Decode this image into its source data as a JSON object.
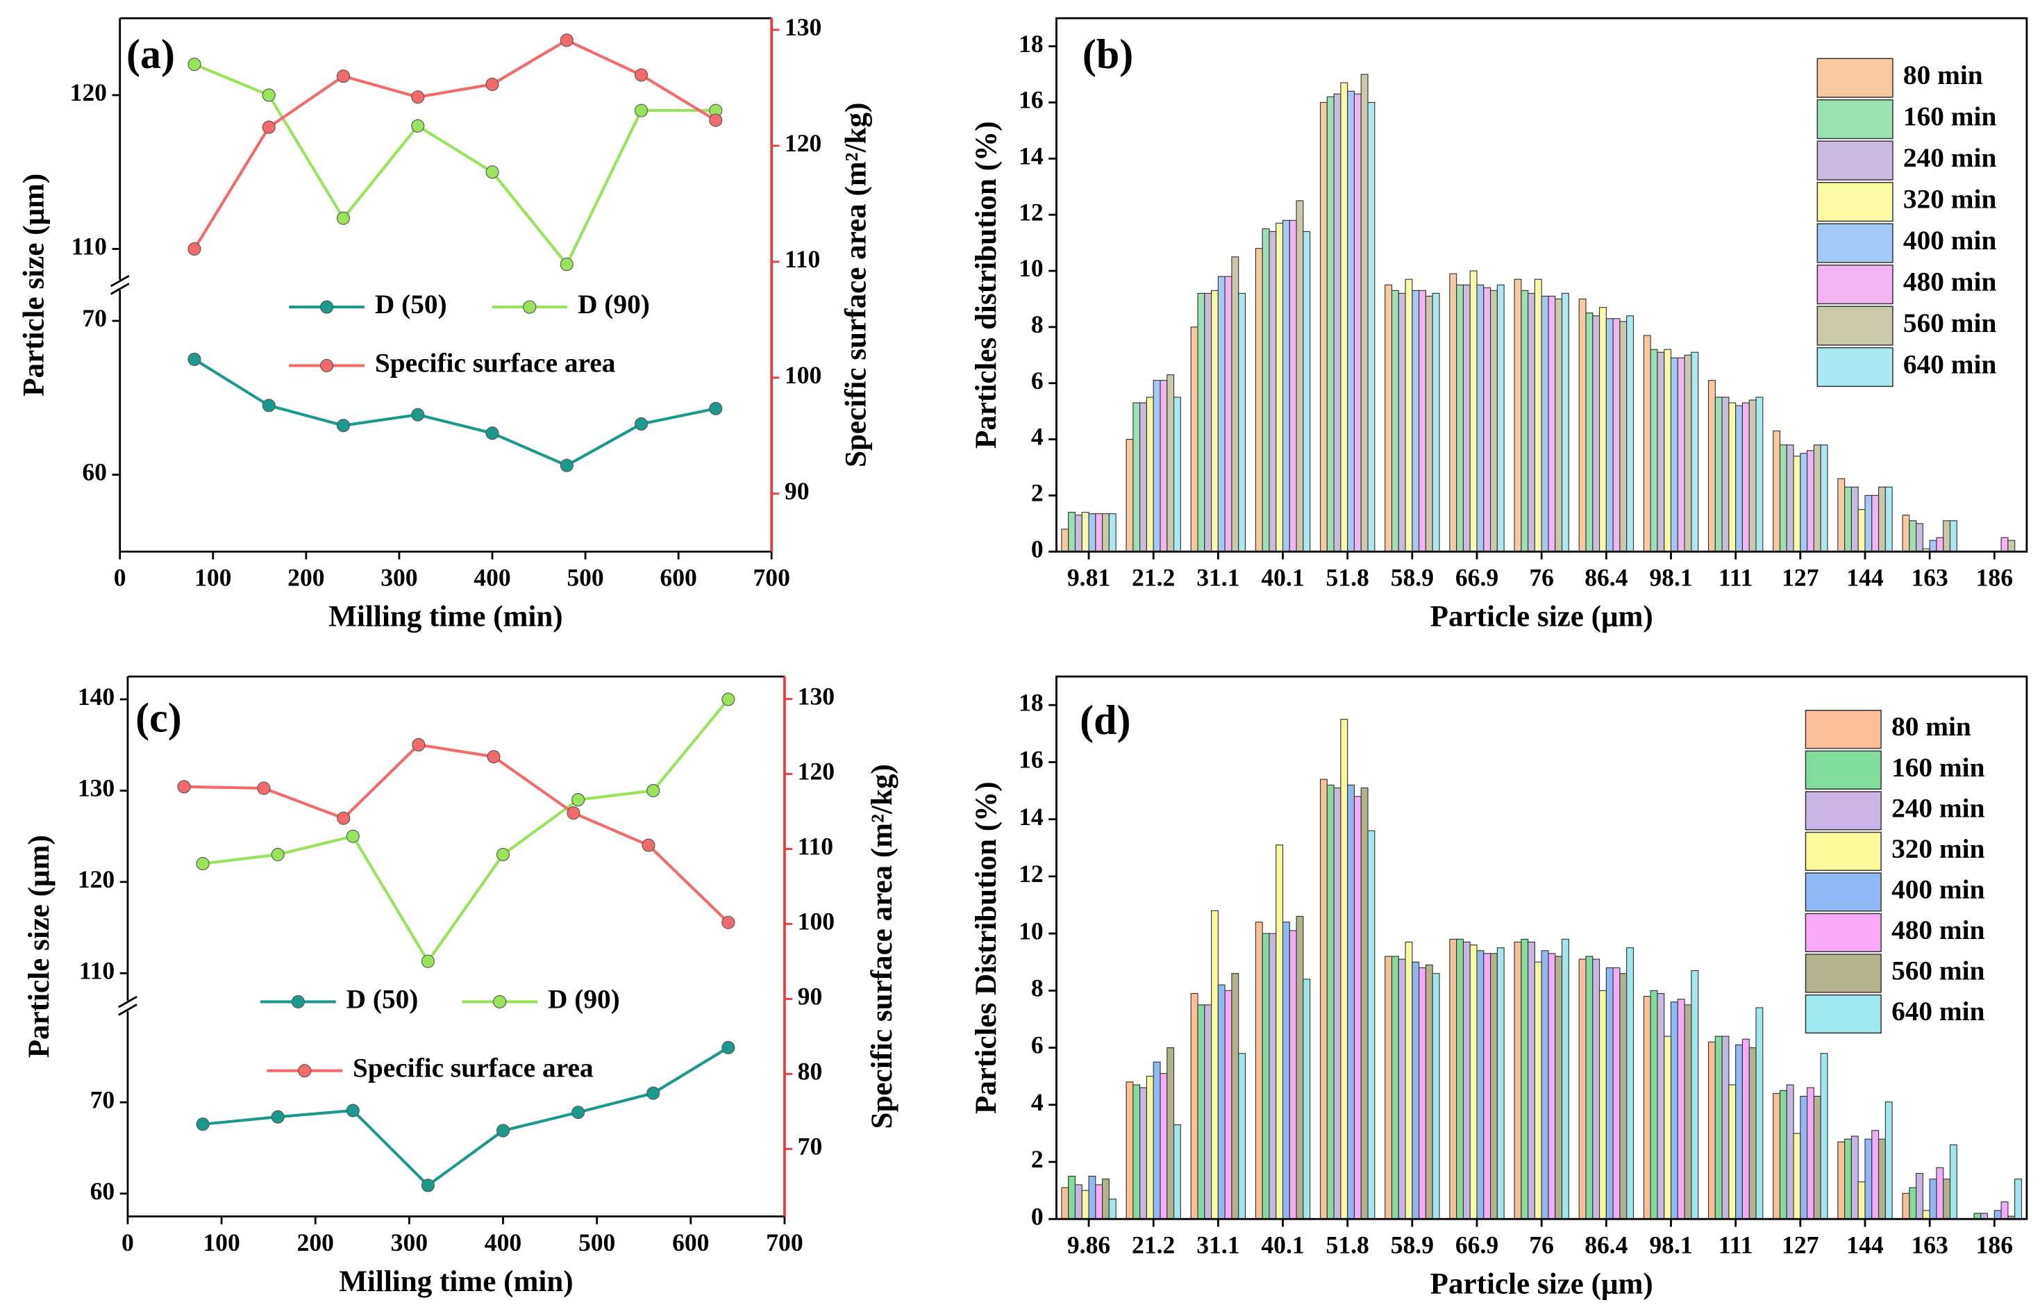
{
  "chart_data": [
    {
      "type": "line",
      "title": "(a)",
      "xlabel": "Milling time (min)",
      "ylabel": "Particle size (μm)",
      "y2label": "Specific surface area (m²/kg)",
      "x": [
        80,
        160,
        240,
        320,
        400,
        480,
        560,
        640
      ],
      "xlim": [
        0,
        700
      ],
      "xticks": [
        0,
        100,
        200,
        300,
        400,
        500,
        600,
        700
      ],
      "ylim": [
        55,
        125
      ],
      "ybreak": [
        72,
        108
      ],
      "yticks": [
        60,
        70,
        110,
        120
      ],
      "y2lim": [
        85,
        131
      ],
      "y2ticks": [
        90,
        100,
        110,
        120,
        130
      ],
      "y2color": "#f03a3a",
      "series": [
        {
          "name": "D (50)",
          "color": "#1a9a8c",
          "values": [
            67.5,
            64.5,
            63.2,
            63.9,
            62.7,
            60.6,
            63.3,
            64.3
          ]
        },
        {
          "name": "D (90)",
          "color": "#98e45a",
          "values": [
            122,
            120,
            112,
            118,
            115,
            109,
            119,
            119
          ]
        },
        {
          "name": "Specific surface area",
          "color": "#f46a6a",
          "axis": "y2",
          "values": [
            111.1,
            121.6,
            126,
            124.2,
            125.3,
            129.1,
            126.1,
            122.2
          ]
        }
      ]
    },
    {
      "type": "bar",
      "title": "(b)",
      "xlabel": "Particle size (μm)",
      "ylabel": "Particles distribution (%)",
      "categories": [
        "9.81",
        "21.2",
        "31.1",
        "40.1",
        "51.8",
        "58.9",
        "66.9",
        "76",
        "86.4",
        "98.1",
        "111",
        "127",
        "144",
        "163",
        "186"
      ],
      "ylim": [
        0,
        19
      ],
      "yticks": [
        0,
        2,
        4,
        6,
        8,
        10,
        12,
        14,
        16,
        18
      ],
      "series": [
        {
          "name": "80 min",
          "color": "#f9c9a2",
          "values": [
            0.8,
            4.0,
            8.0,
            10.8,
            16.0,
            9.5,
            9.9,
            9.7,
            9.0,
            7.7,
            6.1,
            4.3,
            2.6,
            1.3,
            0
          ]
        },
        {
          "name": "160 min",
          "color": "#9ae2b2",
          "values": [
            1.4,
            5.3,
            9.2,
            11.5,
            16.2,
            9.3,
            9.5,
            9.3,
            8.5,
            7.2,
            5.5,
            3.8,
            2.3,
            1.1,
            0
          ]
        },
        {
          "name": "240 min",
          "color": "#cbbbe2",
          "values": [
            1.3,
            5.3,
            9.2,
            11.4,
            16.3,
            9.2,
            9.5,
            9.2,
            8.4,
            7.1,
            5.5,
            3.8,
            2.3,
            1.0,
            0
          ]
        },
        {
          "name": "320 min",
          "color": "#fafaa4",
          "values": [
            1.4,
            5.5,
            9.3,
            11.7,
            16.7,
            9.7,
            10.0,
            9.7,
            8.7,
            7.2,
            5.3,
            3.4,
            1.5,
            0.1,
            0
          ]
        },
        {
          "name": "400 min",
          "color": "#a3c9f8",
          "values": [
            1.35,
            6.1,
            9.8,
            11.8,
            16.4,
            9.3,
            9.5,
            9.1,
            8.3,
            6.9,
            5.2,
            3.5,
            2.0,
            0.4,
            0
          ]
        },
        {
          "name": "480 min",
          "color": "#f2b4f2",
          "values": [
            1.35,
            6.1,
            9.8,
            11.8,
            16.3,
            9.3,
            9.4,
            9.1,
            8.3,
            6.9,
            5.3,
            3.6,
            2.0,
            0.5,
            0.5
          ]
        },
        {
          "name": "560 min",
          "color": "#cacaab",
          "values": [
            1.35,
            6.3,
            10.5,
            12.5,
            17.0,
            9.1,
            9.3,
            9.0,
            8.2,
            7.0,
            5.4,
            3.8,
            2.3,
            1.1,
            0.4
          ]
        },
        {
          "name": "640 min",
          "color": "#aae8f2",
          "values": [
            1.35,
            5.5,
            9.2,
            11.4,
            16.0,
            9.2,
            9.5,
            9.2,
            8.4,
            7.1,
            5.5,
            3.8,
            2.3,
            1.1,
            0
          ]
        }
      ]
    },
    {
      "type": "line",
      "title": "(c)",
      "xlabel": "Milling time (min)",
      "ylabel": "Particle size (μm)",
      "y2label": "Specific surface area (m²/kg)",
      "x": [
        80,
        160,
        240,
        320,
        400,
        480,
        560,
        640
      ],
      "xlim": [
        0,
        700
      ],
      "xticks": [
        0,
        100,
        200,
        300,
        400,
        500,
        600,
        700
      ],
      "ylim": [
        57.5,
        142.5
      ],
      "ybreak": [
        80,
        107
      ],
      "yticks": [
        60,
        70,
        110,
        120,
        130,
        140
      ],
      "y2lim": [
        61,
        133
      ],
      "y2ticks": [
        70,
        80,
        90,
        100,
        110,
        120,
        130
      ],
      "y2color": "#f03a3a",
      "series": [
        {
          "name": "D (50)",
          "color": "#1a9a8c",
          "values": [
            67.6,
            68.4,
            69.1,
            60.9,
            66.9,
            68.9,
            71,
            76
          ]
        },
        {
          "name": "D (90)",
          "color": "#98e45a",
          "values": [
            122,
            123,
            125,
            111.3,
            123,
            129,
            130,
            140
          ]
        },
        {
          "name": "Specific surface area",
          "color": "#f46a6a",
          "axis": "y2",
          "x": [
            60,
            145,
            230,
            310,
            390,
            475,
            555,
            640
          ],
          "values": [
            118.3,
            118.1,
            114.1,
            123.9,
            122.3,
            114.8,
            110.5,
            100.2
          ]
        }
      ]
    },
    {
      "type": "bar",
      "title": "(d)",
      "xlabel": "Particle size (μm)",
      "ylabel": "Particles Distribution (%)",
      "categories": [
        "9.86",
        "21.2",
        "31.1",
        "40.1",
        "51.8",
        "58.9",
        "66.9",
        "76",
        "86.4",
        "98.1",
        "111",
        "127",
        "144",
        "163",
        "186"
      ],
      "ylim": [
        0,
        19
      ],
      "yticks": [
        0,
        2,
        4,
        6,
        8,
        10,
        12,
        14,
        16,
        18
      ],
      "series": [
        {
          "name": "80 min",
          "color": "#fbc097",
          "values": [
            1.1,
            4.8,
            7.9,
            10.4,
            15.4,
            9.2,
            9.8,
            9.7,
            9.1,
            7.8,
            6.2,
            4.4,
            2.7,
            0.9,
            0
          ]
        },
        {
          "name": "160 min",
          "color": "#82dc9c",
          "values": [
            1.5,
            4.7,
            7.5,
            10.0,
            15.2,
            9.2,
            9.8,
            9.8,
            9.2,
            8.0,
            6.4,
            4.5,
            2.8,
            1.1,
            0.2
          ]
        },
        {
          "name": "240 min",
          "color": "#c9b5e6",
          "values": [
            1.2,
            4.6,
            7.5,
            10.0,
            15.1,
            9.1,
            9.7,
            9.7,
            9.1,
            7.9,
            6.4,
            4.7,
            2.9,
            1.6,
            0.2
          ]
        },
        {
          "name": "320 min",
          "color": "#fafa9c",
          "values": [
            1.0,
            5.0,
            10.8,
            13.1,
            17.5,
            9.7,
            9.6,
            9.0,
            8.0,
            6.4,
            4.7,
            3.0,
            1.3,
            0.3,
            0
          ]
        },
        {
          "name": "400 min",
          "color": "#8fb9f5",
          "values": [
            1.5,
            5.5,
            8.2,
            10.4,
            15.2,
            9.0,
            9.4,
            9.4,
            8.8,
            7.6,
            6.1,
            4.3,
            2.8,
            1.4,
            0.3
          ]
        },
        {
          "name": "480 min",
          "color": "#f8aaf8",
          "values": [
            1.2,
            5.1,
            8.0,
            10.1,
            14.8,
            8.8,
            9.3,
            9.3,
            8.8,
            7.7,
            6.3,
            4.6,
            3.1,
            1.8,
            0.6
          ]
        },
        {
          "name": "560 min",
          "color": "#b2b28b",
          "values": [
            1.4,
            6.0,
            8.6,
            10.6,
            15.1,
            8.9,
            9.3,
            9.2,
            8.6,
            7.5,
            6.0,
            4.3,
            2.8,
            1.4,
            0.1
          ]
        },
        {
          "name": "640 min",
          "color": "#a0e8ef",
          "values": [
            0.7,
            3.3,
            5.8,
            8.4,
            13.6,
            8.6,
            9.5,
            9.8,
            9.5,
            8.7,
            7.4,
            5.8,
            4.1,
            2.6,
            1.4
          ]
        }
      ]
    }
  ]
}
